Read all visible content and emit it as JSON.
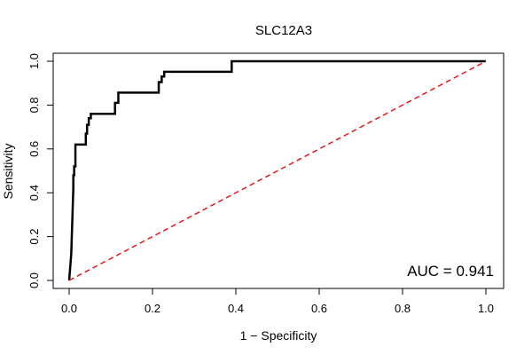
{
  "chart_data": {
    "type": "line",
    "title": "SLC12A3",
    "xlabel": "1 − Specificity",
    "ylabel": "Sensitivity",
    "xlim": [
      0.0,
      1.0
    ],
    "ylim": [
      0.0,
      1.0
    ],
    "xticks": [
      "0.0",
      "0.2",
      "0.4",
      "0.6",
      "0.8",
      "1.0"
    ],
    "yticks": [
      "0.0",
      "0.2",
      "0.4",
      "0.6",
      "0.8",
      "1.0"
    ],
    "grid": false,
    "legend": "none",
    "annotation": "AUC = 0.941",
    "series": [
      {
        "color": "#000000",
        "style": "solid",
        "x": [
          0.0,
          0.005,
          0.008,
          0.01,
          0.01,
          0.012,
          0.012,
          0.015,
          0.015,
          0.04,
          0.04,
          0.043,
          0.043,
          0.047,
          0.047,
          0.052,
          0.052,
          0.11,
          0.11,
          0.118,
          0.118,
          0.215,
          0.215,
          0.222,
          0.222,
          0.228,
          0.228,
          0.39,
          0.39,
          1.0
        ],
        "y": [
          0.0,
          0.12,
          0.3,
          0.42,
          0.48,
          0.48,
          0.52,
          0.52,
          0.62,
          0.62,
          0.67,
          0.67,
          0.71,
          0.71,
          0.74,
          0.74,
          0.76,
          0.76,
          0.81,
          0.81,
          0.857,
          0.857,
          0.905,
          0.905,
          0.93,
          0.93,
          0.952,
          0.952,
          1.0,
          1.0
        ]
      },
      {
        "color": "#e41a1c",
        "style": "dashed",
        "x": [
          0.0,
          1.0
        ],
        "y": [
          0.0,
          1.0
        ]
      }
    ]
  }
}
